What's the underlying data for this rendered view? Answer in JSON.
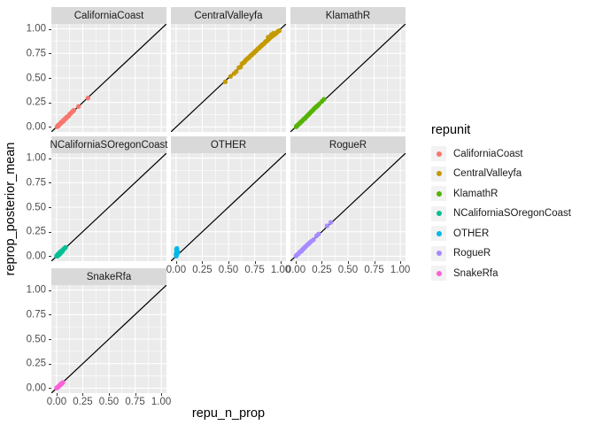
{
  "figure": {
    "background": "#ffffff"
  },
  "chart_data": {
    "type": "scatter",
    "title": "",
    "xlabel": "repu_n_prop",
    "ylabel": "reprop_posterior_mean",
    "legend_title": "repunit",
    "legend_position": "right",
    "x_tick_labels": [
      "0.00",
      "0.25",
      "0.50",
      "0.75",
      "1.00"
    ],
    "y_tick_labels": [
      "0.00",
      "0.25",
      "0.50",
      "0.75",
      "1.00"
    ],
    "x_tick_values": [
      0,
      0.25,
      0.5,
      0.75,
      1
    ],
    "y_tick_values": [
      0,
      0.25,
      0.5,
      0.75,
      1
    ],
    "minor_tick_values": [
      0.125,
      0.375,
      0.625,
      0.875
    ],
    "xlim": [
      -0.05,
      1.05
    ],
    "ylim": [
      -0.05,
      1.05
    ],
    "grid": "white major and minor gridlines on grey panel",
    "panel_bg": "#ebebeb",
    "strip_bg": "#d9d9d9",
    "grid_color": "#ffffff",
    "legend_key_bg": "#f2f2f2",
    "reference_line": {
      "type": "identity",
      "equation": "y = x",
      "color": "#000000"
    },
    "facets": [
      {
        "label": "CaliforniaCoast",
        "color": "#F8766D",
        "points": [
          [
            0.005,
            0.002
          ],
          [
            0.01,
            0.01
          ],
          [
            0.015,
            0.018
          ],
          [
            0.02,
            0.015
          ],
          [
            0.025,
            0.025
          ],
          [
            0.03,
            0.028
          ],
          [
            0.035,
            0.035
          ],
          [
            0.04,
            0.038
          ],
          [
            0.045,
            0.048
          ],
          [
            0.05,
            0.05
          ],
          [
            0.055,
            0.052
          ],
          [
            0.06,
            0.062
          ],
          [
            0.065,
            0.06
          ],
          [
            0.07,
            0.072
          ],
          [
            0.075,
            0.078
          ],
          [
            0.08,
            0.08
          ],
          [
            0.09,
            0.088
          ],
          [
            0.095,
            0.1
          ],
          [
            0.105,
            0.105
          ],
          [
            0.115,
            0.112
          ],
          [
            0.125,
            0.13
          ],
          [
            0.135,
            0.138
          ],
          [
            0.145,
            0.15
          ],
          [
            0.155,
            0.16
          ],
          [
            0.165,
            0.17
          ],
          [
            0.21,
            0.21
          ],
          [
            0.3,
            0.295
          ]
        ]
      },
      {
        "label": "CentralValleyfa",
        "color": "#C49A00",
        "points": [
          [
            0.47,
            0.46
          ],
          [
            0.52,
            0.515
          ],
          [
            0.555,
            0.545
          ],
          [
            0.575,
            0.565
          ],
          [
            0.6,
            0.605
          ],
          [
            0.615,
            0.61
          ],
          [
            0.63,
            0.645
          ],
          [
            0.645,
            0.655
          ],
          [
            0.655,
            0.665
          ],
          [
            0.665,
            0.68
          ],
          [
            0.675,
            0.69
          ],
          [
            0.685,
            0.7
          ],
          [
            0.695,
            0.705
          ],
          [
            0.705,
            0.72
          ],
          [
            0.715,
            0.73
          ],
          [
            0.725,
            0.735
          ],
          [
            0.735,
            0.75
          ],
          [
            0.745,
            0.755
          ],
          [
            0.755,
            0.77
          ],
          [
            0.765,
            0.775
          ],
          [
            0.775,
            0.79
          ],
          [
            0.785,
            0.8
          ],
          [
            0.795,
            0.805
          ],
          [
            0.805,
            0.82
          ],
          [
            0.815,
            0.825
          ],
          [
            0.825,
            0.84
          ],
          [
            0.835,
            0.845
          ],
          [
            0.845,
            0.855
          ],
          [
            0.855,
            0.87
          ],
          [
            0.865,
            0.875
          ],
          [
            0.875,
            0.885
          ],
          [
            0.88,
            0.915
          ],
          [
            0.885,
            0.895
          ],
          [
            0.895,
            0.905
          ],
          [
            0.905,
            0.915
          ],
          [
            0.91,
            0.94
          ],
          [
            0.915,
            0.925
          ],
          [
            0.925,
            0.93
          ],
          [
            0.93,
            0.955
          ],
          [
            0.935,
            0.94
          ],
          [
            0.945,
            0.945
          ],
          [
            0.955,
            0.955
          ],
          [
            0.965,
            0.965
          ],
          [
            0.975,
            0.975
          ],
          [
            0.985,
            0.98
          ]
        ]
      },
      {
        "label": "KlamathR",
        "color": "#53B400",
        "points": [
          [
            0.005,
            0.002
          ],
          [
            0.01,
            0.012
          ],
          [
            0.02,
            0.018
          ],
          [
            0.03,
            0.032
          ],
          [
            0.04,
            0.038
          ],
          [
            0.05,
            0.052
          ],
          [
            0.06,
            0.058
          ],
          [
            0.07,
            0.072
          ],
          [
            0.08,
            0.082
          ],
          [
            0.09,
            0.088
          ],
          [
            0.1,
            0.103
          ],
          [
            0.11,
            0.112
          ],
          [
            0.12,
            0.124
          ],
          [
            0.13,
            0.133
          ],
          [
            0.14,
            0.146
          ],
          [
            0.15,
            0.157
          ],
          [
            0.16,
            0.166
          ],
          [
            0.17,
            0.177
          ],
          [
            0.18,
            0.19
          ],
          [
            0.19,
            0.198
          ],
          [
            0.2,
            0.21
          ],
          [
            0.21,
            0.217
          ],
          [
            0.225,
            0.235
          ],
          [
            0.25,
            0.26
          ],
          [
            0.27,
            0.282
          ]
        ]
      },
      {
        "label": "NCaliforniaSOregonCoast",
        "color": "#00C094",
        "points": [
          [
            0.0,
            0.003
          ],
          [
            0.005,
            0.01
          ],
          [
            0.008,
            0.002
          ],
          [
            0.012,
            0.02
          ],
          [
            0.015,
            0.012
          ],
          [
            0.02,
            0.028
          ],
          [
            0.022,
            0.015
          ],
          [
            0.025,
            0.032
          ],
          [
            0.03,
            0.022
          ],
          [
            0.032,
            0.04
          ],
          [
            0.038,
            0.03
          ],
          [
            0.04,
            0.048
          ],
          [
            0.045,
            0.04
          ],
          [
            0.05,
            0.055
          ],
          [
            0.055,
            0.05
          ],
          [
            0.06,
            0.065
          ],
          [
            0.068,
            0.072
          ],
          [
            0.075,
            0.08
          ],
          [
            0.085,
            0.09
          ]
        ]
      },
      {
        "label": "OTHER",
        "color": "#00B6EB",
        "points": [
          [
            0.002,
            0.002
          ],
          [
            0.004,
            0.012
          ],
          [
            0.006,
            0.022
          ],
          [
            0.003,
            0.032
          ],
          [
            0.007,
            0.042
          ],
          [
            0.01,
            0.052
          ],
          [
            0.006,
            0.06
          ],
          [
            0.004,
            0.07
          ],
          [
            0.008,
            0.08
          ],
          [
            0.012,
            0.03
          ],
          [
            0.0,
            0.018
          ],
          [
            0.015,
            0.045
          ]
        ]
      },
      {
        "label": "RogueR",
        "color": "#A58AFF",
        "points": [
          [
            0.003,
            0.003
          ],
          [
            0.01,
            0.012
          ],
          [
            0.018,
            0.02
          ],
          [
            0.025,
            0.022
          ],
          [
            0.035,
            0.038
          ],
          [
            0.045,
            0.048
          ],
          [
            0.055,
            0.052
          ],
          [
            0.065,
            0.068
          ],
          [
            0.075,
            0.078
          ],
          [
            0.085,
            0.088
          ],
          [
            0.095,
            0.1
          ],
          [
            0.105,
            0.108
          ],
          [
            0.115,
            0.12
          ],
          [
            0.125,
            0.127
          ],
          [
            0.135,
            0.14
          ],
          [
            0.15,
            0.152
          ],
          [
            0.17,
            0.168
          ],
          [
            0.2,
            0.208
          ],
          [
            0.22,
            0.228
          ],
          [
            0.3,
            0.31
          ],
          [
            0.335,
            0.345
          ]
        ]
      },
      {
        "label": "SnakeRfa",
        "color": "#FB61D7",
        "points": [
          [
            0.0,
            0.002
          ],
          [
            0.005,
            0.006
          ],
          [
            0.01,
            0.008
          ],
          [
            0.015,
            0.015
          ],
          [
            0.02,
            0.018
          ],
          [
            0.025,
            0.025
          ],
          [
            0.03,
            0.028
          ],
          [
            0.035,
            0.035
          ],
          [
            0.04,
            0.042
          ],
          [
            0.045,
            0.04
          ],
          [
            0.05,
            0.05
          ],
          [
            0.06,
            0.058
          ]
        ]
      }
    ]
  }
}
